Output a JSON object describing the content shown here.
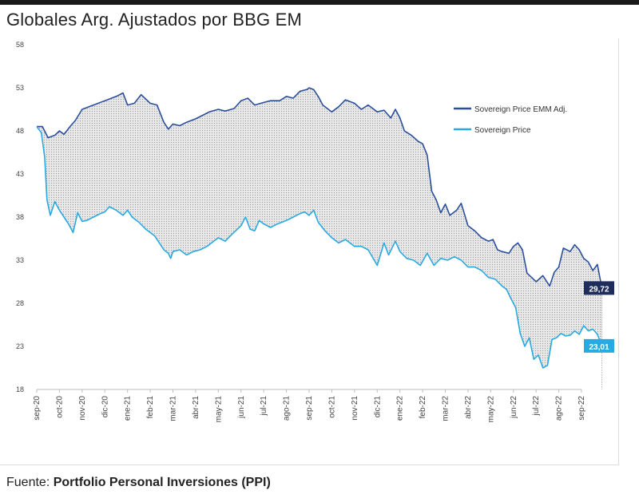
{
  "chart_data": {
    "type": "line",
    "title": "Globales Arg. Ajustados por BBG EM",
    "xlabel": "",
    "ylabel": "",
    "ylim": [
      18,
      58
    ],
    "yticks": [
      18,
      23,
      28,
      33,
      38,
      43,
      48,
      53,
      58
    ],
    "categories": [
      "sep-20",
      "oct-20",
      "nov-20",
      "dic-20",
      "ene-21",
      "feb-21",
      "mar-21",
      "abr-21",
      "may-21",
      "jun-21",
      "jul-21",
      "ago-21",
      "sep-21",
      "oct-21",
      "nov-21",
      "dic-21",
      "ene-22",
      "feb-22",
      "mar-22",
      "abr-22",
      "may-22",
      "jun-22",
      "jul-22",
      "ago-22",
      "sep-22"
    ],
    "shaded_between_series": true,
    "legend_position": "right",
    "series": [
      {
        "name": "Sovereign Price EMM Adj.",
        "color": "#2b4f9c",
        "end_label": "29,72",
        "end_label_bg": "#1f2d5c",
        "points": [
          [
            0,
            48.5
          ],
          [
            0.25,
            48.5
          ],
          [
            0.5,
            47.2
          ],
          [
            0.8,
            47.5
          ],
          [
            1,
            48.0
          ],
          [
            1.2,
            47.6
          ],
          [
            1.5,
            48.6
          ],
          [
            1.7,
            49.2
          ],
          [
            2,
            50.5
          ],
          [
            2.5,
            51.0
          ],
          [
            3,
            51.5
          ],
          [
            3.5,
            52.0
          ],
          [
            3.8,
            52.4
          ],
          [
            4,
            51.0
          ],
          [
            4.3,
            51.2
          ],
          [
            4.6,
            52.2
          ],
          [
            5,
            51.2
          ],
          [
            5.3,
            51.0
          ],
          [
            5.6,
            49.0
          ],
          [
            5.8,
            48.2
          ],
          [
            6,
            48.8
          ],
          [
            6.3,
            48.6
          ],
          [
            6.6,
            49.0
          ],
          [
            7,
            49.4
          ],
          [
            7.3,
            49.8
          ],
          [
            7.6,
            50.2
          ],
          [
            8,
            50.5
          ],
          [
            8.3,
            50.3
          ],
          [
            8.7,
            50.6
          ],
          [
            9,
            51.5
          ],
          [
            9.3,
            51.8
          ],
          [
            9.6,
            51.0
          ],
          [
            10,
            51.3
          ],
          [
            10.3,
            51.5
          ],
          [
            10.7,
            51.5
          ],
          [
            11,
            52.0
          ],
          [
            11.3,
            51.8
          ],
          [
            11.6,
            52.6
          ],
          [
            11.9,
            52.8
          ],
          [
            12,
            53.0
          ],
          [
            12.2,
            52.8
          ],
          [
            12.4,
            52.0
          ],
          [
            12.6,
            51.0
          ],
          [
            13,
            50.2
          ],
          [
            13.3,
            50.8
          ],
          [
            13.6,
            51.6
          ],
          [
            14,
            51.2
          ],
          [
            14.3,
            50.5
          ],
          [
            14.6,
            51.0
          ],
          [
            15,
            50.2
          ],
          [
            15.3,
            50.4
          ],
          [
            15.6,
            49.5
          ],
          [
            15.8,
            50.5
          ],
          [
            16,
            49.5
          ],
          [
            16.2,
            48.0
          ],
          [
            16.5,
            47.5
          ],
          [
            16.8,
            46.8
          ],
          [
            17,
            46.5
          ],
          [
            17.2,
            45.2
          ],
          [
            17.4,
            41.0
          ],
          [
            17.6,
            40.0
          ],
          [
            17.8,
            38.5
          ],
          [
            18,
            39.5
          ],
          [
            18.2,
            38.2
          ],
          [
            18.5,
            38.8
          ],
          [
            18.7,
            39.6
          ],
          [
            19,
            37.0
          ],
          [
            19.3,
            36.4
          ],
          [
            19.6,
            35.6
          ],
          [
            19.9,
            35.2
          ],
          [
            20.1,
            35.4
          ],
          [
            20.3,
            34.2
          ],
          [
            20.5,
            34.0
          ],
          [
            20.8,
            33.8
          ],
          [
            21,
            34.6
          ],
          [
            21.2,
            35.0
          ],
          [
            21.4,
            34.2
          ],
          [
            21.6,
            31.5
          ],
          [
            21.8,
            31.0
          ],
          [
            22,
            30.5
          ],
          [
            22.3,
            31.2
          ],
          [
            22.6,
            30.0
          ],
          [
            22.8,
            31.6
          ],
          [
            23.0,
            32.2
          ],
          [
            23.2,
            34.4
          ],
          [
            23.5,
            34.0
          ],
          [
            23.7,
            34.8
          ],
          [
            23.9,
            34.2
          ],
          [
            24.1,
            33.2
          ],
          [
            24.3,
            32.8
          ],
          [
            24.5,
            31.8
          ],
          [
            24.7,
            32.5
          ],
          [
            24.9,
            29.72
          ]
        ]
      },
      {
        "name": "Sovereign Price",
        "color": "#29a9e1",
        "end_label": "23,01",
        "end_label_bg": "#29a9e1",
        "points": [
          [
            0,
            48.5
          ],
          [
            0.2,
            47.8
          ],
          [
            0.35,
            45.0
          ],
          [
            0.45,
            40.0
          ],
          [
            0.6,
            38.2
          ],
          [
            0.8,
            39.8
          ],
          [
            1,
            38.8
          ],
          [
            1.2,
            38.0
          ],
          [
            1.4,
            37.2
          ],
          [
            1.6,
            36.2
          ],
          [
            1.8,
            38.5
          ],
          [
            2,
            37.5
          ],
          [
            2.2,
            37.6
          ],
          [
            2.5,
            38.0
          ],
          [
            2.8,
            38.4
          ],
          [
            3,
            38.6
          ],
          [
            3.2,
            39.2
          ],
          [
            3.5,
            38.8
          ],
          [
            3.8,
            38.2
          ],
          [
            4,
            38.8
          ],
          [
            4.2,
            38.0
          ],
          [
            4.5,
            37.4
          ],
          [
            4.8,
            36.6
          ],
          [
            5,
            36.2
          ],
          [
            5.2,
            35.8
          ],
          [
            5.4,
            35.0
          ],
          [
            5.6,
            34.2
          ],
          [
            5.8,
            33.8
          ],
          [
            5.9,
            33.2
          ],
          [
            6,
            34.0
          ],
          [
            6.3,
            34.2
          ],
          [
            6.6,
            33.6
          ],
          [
            6.9,
            34.0
          ],
          [
            7.2,
            34.2
          ],
          [
            7.5,
            34.6
          ],
          [
            7.8,
            35.2
          ],
          [
            8,
            35.6
          ],
          [
            8.3,
            35.2
          ],
          [
            8.6,
            36.0
          ],
          [
            9,
            37.0
          ],
          [
            9.2,
            38.0
          ],
          [
            9.4,
            36.6
          ],
          [
            9.6,
            36.4
          ],
          [
            9.8,
            37.6
          ],
          [
            10,
            37.2
          ],
          [
            10.3,
            36.8
          ],
          [
            10.6,
            37.2
          ],
          [
            11,
            37.6
          ],
          [
            11.3,
            38.0
          ],
          [
            11.6,
            38.4
          ],
          [
            11.8,
            38.6
          ],
          [
            12,
            38.2
          ],
          [
            12.2,
            38.8
          ],
          [
            12.4,
            37.4
          ],
          [
            12.7,
            36.4
          ],
          [
            13,
            35.6
          ],
          [
            13.3,
            35.0
          ],
          [
            13.6,
            35.4
          ],
          [
            14,
            34.6
          ],
          [
            14.3,
            34.6
          ],
          [
            14.6,
            34.2
          ],
          [
            15,
            32.4
          ],
          [
            15.3,
            35.0
          ],
          [
            15.5,
            33.6
          ],
          [
            15.8,
            35.2
          ],
          [
            16,
            34.0
          ],
          [
            16.3,
            33.2
          ],
          [
            16.6,
            33.0
          ],
          [
            16.9,
            32.4
          ],
          [
            17.2,
            33.8
          ],
          [
            17.5,
            32.4
          ],
          [
            17.8,
            33.2
          ],
          [
            18.1,
            33.0
          ],
          [
            18.4,
            33.4
          ],
          [
            18.7,
            33.0
          ],
          [
            19,
            32.2
          ],
          [
            19.3,
            32.2
          ],
          [
            19.6,
            31.8
          ],
          [
            19.9,
            31.0
          ],
          [
            20.2,
            30.8
          ],
          [
            20.5,
            30.0
          ],
          [
            20.7,
            29.6
          ],
          [
            20.9,
            28.5
          ],
          [
            21.1,
            27.5
          ],
          [
            21.3,
            24.5
          ],
          [
            21.5,
            23.0
          ],
          [
            21.7,
            24.0
          ],
          [
            21.9,
            21.5
          ],
          [
            22.1,
            22.0
          ],
          [
            22.3,
            20.5
          ],
          [
            22.5,
            20.8
          ],
          [
            22.7,
            23.8
          ],
          [
            22.9,
            24.0
          ],
          [
            23.1,
            24.5
          ],
          [
            23.3,
            24.2
          ],
          [
            23.5,
            24.3
          ],
          [
            23.7,
            24.8
          ],
          [
            23.9,
            24.4
          ],
          [
            24.1,
            25.4
          ],
          [
            24.3,
            24.8
          ],
          [
            24.5,
            25.0
          ],
          [
            24.7,
            24.4
          ],
          [
            24.9,
            23.01
          ]
        ]
      }
    ]
  },
  "source": {
    "prefix": "Fuente:",
    "name": "Portfolio Personal Inversiones (PPI)"
  }
}
